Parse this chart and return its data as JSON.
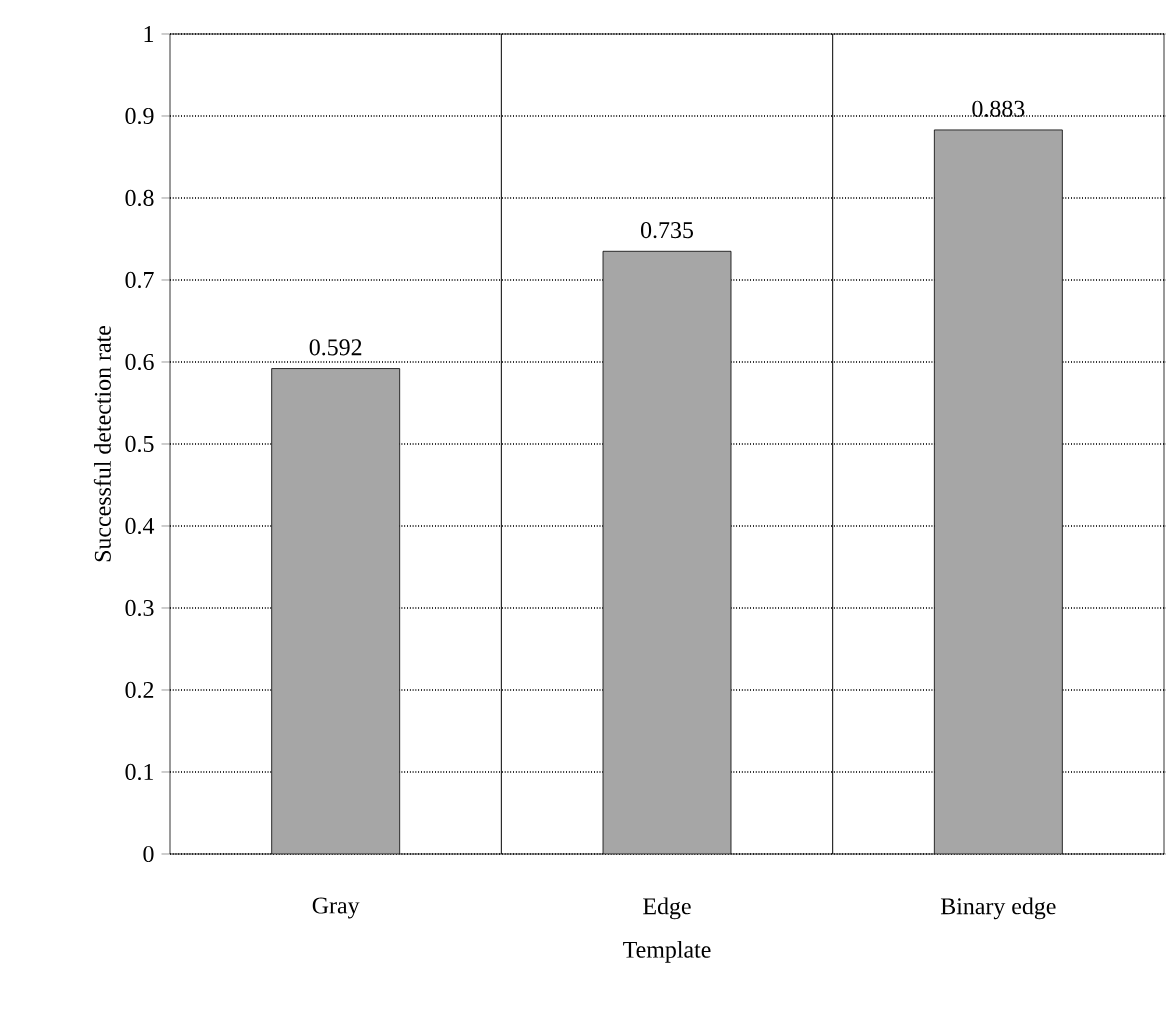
{
  "chart_data": {
    "type": "bar",
    "xlabel": "Template",
    "ylabel": "Successful detection rate",
    "categories": [
      "Gray",
      "Edge",
      "Binary edge"
    ],
    "values": [
      0.592,
      0.735,
      0.883
    ],
    "color": "#a6a6a6",
    "ylim": [
      0,
      1
    ],
    "yticks": [
      0,
      0.1,
      0.2,
      0.3,
      0.4,
      0.5,
      0.6,
      0.7,
      0.8,
      0.9,
      1
    ],
    "grid": true,
    "data_labels": true
  }
}
